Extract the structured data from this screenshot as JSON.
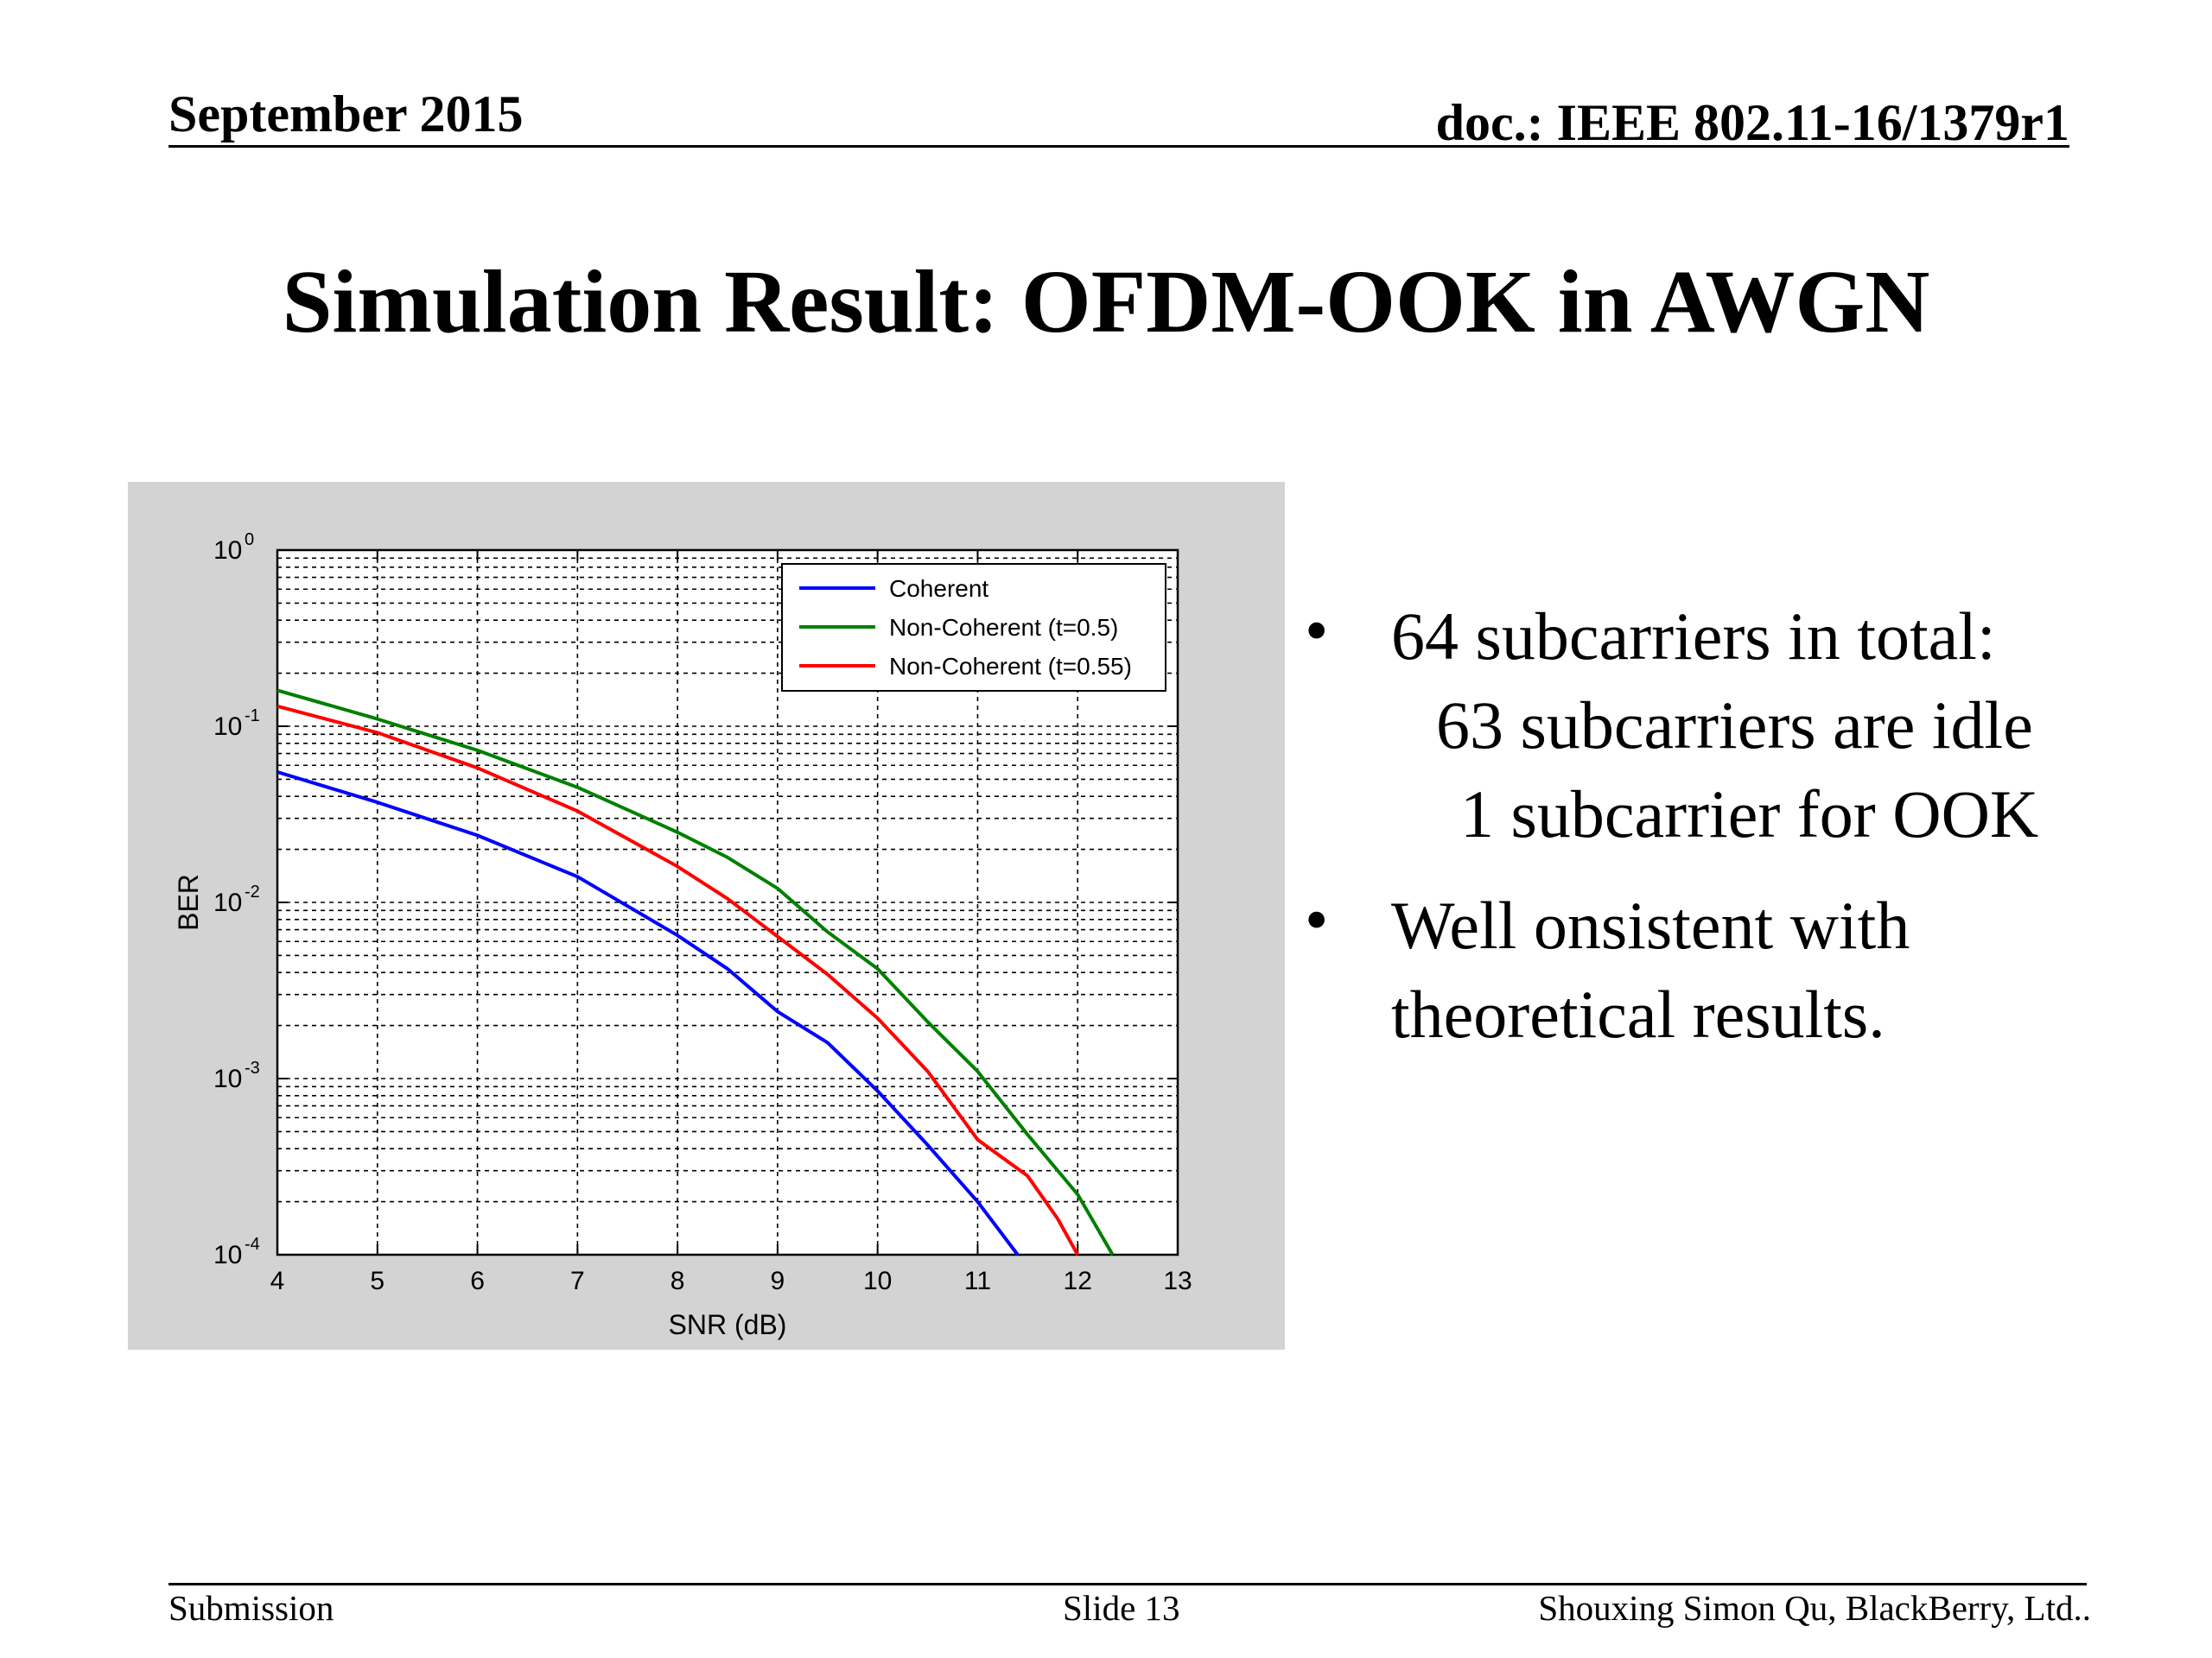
{
  "header": {
    "date": "September 2015",
    "doc": "doc.: IEEE 802.11-16/1379r1"
  },
  "slide_title": "Simulation Result: OFDM-OOK in AWGN",
  "bullets": [
    {
      "lines": [
        "64 subcarriers in total:",
        "63 subcarriers are idle",
        "1 subcarrier for OOK"
      ]
    },
    {
      "lines": [
        "Well onsistent with",
        "theoretical results."
      ]
    }
  ],
  "footer": {
    "left": "Submission",
    "center": "Slide 13",
    "right": "Shouxing Simon Qu, BlackBerry, Ltd.."
  },
  "colors": {
    "panel": "#d3d3d3",
    "coherent": "#0000ff",
    "nc05": "#008000",
    "nc055": "#ff0000"
  },
  "chart_data": {
    "type": "line",
    "title": "",
    "xlabel": "SNR (dB)",
    "ylabel": "BER",
    "xlim": [
      4,
      13
    ],
    "ylim": [
      0.0001,
      1
    ],
    "yscale": "log",
    "xticks": [
      "4",
      "5",
      "6",
      "7",
      "8",
      "9",
      "10",
      "11",
      "12",
      "13"
    ],
    "yticks": [
      {
        "base": "10",
        "exp": "0"
      },
      {
        "base": "10",
        "exp": "-1"
      },
      {
        "base": "10",
        "exp": "-2"
      },
      {
        "base": "10",
        "exp": "-3"
      },
      {
        "base": "10",
        "exp": "-4"
      }
    ],
    "grid": true,
    "legend": "top-right",
    "series": [
      {
        "name": "Coherent",
        "color": "#0000ff",
        "x": [
          4,
          5,
          6,
          7,
          8,
          8.5,
          9,
          9.5,
          10,
          10.5,
          11,
          11.4
        ],
        "y": [
          0.055,
          0.037,
          0.024,
          0.014,
          0.0065,
          0.0042,
          0.0024,
          0.0016,
          0.00085,
          0.00042,
          0.0002,
          0.0001
        ]
      },
      {
        "name": "Non-Coherent (t=0.5)",
        "color": "#008000",
        "x": [
          4,
          5,
          6,
          7,
          8,
          8.5,
          9,
          9.5,
          10,
          10.5,
          11,
          11.5,
          12,
          12.35
        ],
        "y": [
          0.16,
          0.11,
          0.073,
          0.045,
          0.025,
          0.018,
          0.012,
          0.0068,
          0.0042,
          0.0021,
          0.0011,
          0.00048,
          0.00022,
          0.0001
        ]
      },
      {
        "name": "Non-Coherent (t=0.55)",
        "color": "#ff0000",
        "x": [
          4,
          5,
          6,
          7,
          8,
          8.5,
          9,
          9.5,
          10,
          10.5,
          11,
          11.5,
          11.8,
          12
        ],
        "y": [
          0.13,
          0.092,
          0.058,
          0.033,
          0.016,
          0.0105,
          0.0064,
          0.0039,
          0.0022,
          0.0011,
          0.00045,
          0.00028,
          0.00016,
          0.0001
        ]
      }
    ]
  }
}
